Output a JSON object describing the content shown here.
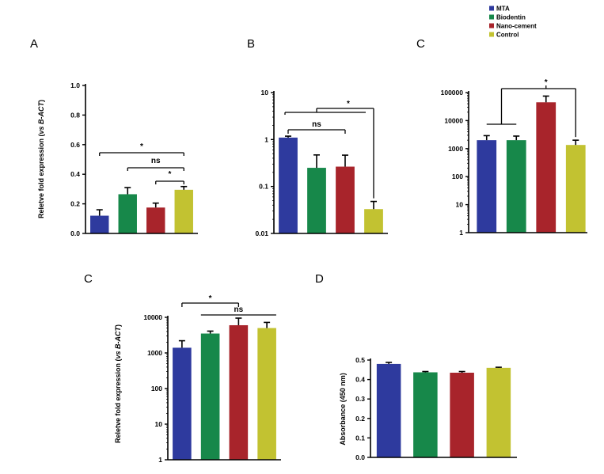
{
  "legend": [
    {
      "label": "MTA",
      "color": "#2e3a9e"
    },
    {
      "label": "Biodentin",
      "color": "#17884a"
    },
    {
      "label": "Nano-cement",
      "color": "#a8242b"
    },
    {
      "label": "Control",
      "color": "#c2c231"
    }
  ],
  "chart_data": [
    {
      "panel_label": "A",
      "type": "bar",
      "scale": "linear",
      "ylabel_pre": "Reletve fold expression (",
      "ylabel_it": "vs B-ACT",
      "ylabel_post": ")",
      "categories": [
        "MTA",
        "Biodentin",
        "Nano-cement",
        "Control"
      ],
      "values": [
        0.12,
        0.265,
        0.175,
        0.295
      ],
      "errors": [
        0.04,
        0.045,
        0.03,
        0.022
      ],
      "ylim": [
        0,
        1.0
      ],
      "ticks": [
        0,
        0.2,
        0.4,
        0.6,
        0.8,
        1.0
      ],
      "tick_labels": [
        "0.0",
        "0.2",
        "0.4",
        "0.6",
        "0.8",
        "1.0"
      ],
      "annotations": [
        {
          "text": "*",
          "from": 0,
          "to": 3
        },
        {
          "text": "ns",
          "from": 1,
          "to": 3
        },
        {
          "text": "*",
          "from": 2,
          "to": 3
        }
      ]
    },
    {
      "panel_label": "B",
      "type": "bar",
      "scale": "log",
      "categories": [
        "MTA",
        "Biodentin",
        "Nano-cement",
        "Control"
      ],
      "values": [
        1.1,
        0.25,
        0.265,
        0.033
      ],
      "errors": [
        0.08,
        0.22,
        0.2,
        0.015
      ],
      "ylim": [
        0.01,
        10
      ],
      "ticks": [
        0.01,
        0.1,
        1,
        10
      ],
      "tick_labels": [
        "0.01",
        "0.1",
        "1",
        "10"
      ],
      "annotations": [
        {
          "text": "*",
          "from": 0,
          "to": 3
        },
        {
          "text": "ns",
          "from": 0,
          "to": 2
        }
      ]
    },
    {
      "panel_label": "C",
      "type": "bar",
      "scale": "log",
      "categories": [
        "MTA",
        "Biodentin",
        "Nano-cement",
        "Control"
      ],
      "values": [
        2000,
        2000,
        45000,
        1350
      ],
      "errors": [
        900,
        800,
        30000,
        650
      ],
      "ylim": [
        1,
        100000
      ],
      "ticks": [
        1,
        10,
        100,
        1000,
        10000,
        100000
      ],
      "tick_labels": [
        "1",
        "10",
        "100",
        "1000",
        "10000",
        "100000"
      ],
      "annotations": [
        {
          "text": "*",
          "from": "0-1",
          "to": 2
        }
      ]
    },
    {
      "panel_label": "C",
      "type": "bar",
      "scale": "log",
      "ylabel_pre": "Reletve fold expression (",
      "ylabel_it": "vs B-ACT",
      "ylabel_post": ")",
      "categories": [
        "MTA",
        "Biodentin",
        "Nano-cement",
        "Control"
      ],
      "values": [
        1400,
        3500,
        6000,
        5000
      ],
      "errors": [
        800,
        600,
        3500,
        2200
      ],
      "ylim": [
        1,
        10000
      ],
      "ticks": [
        1,
        10,
        100,
        1000,
        10000
      ],
      "tick_labels": [
        "1",
        "10",
        "100",
        "1000",
        "10000"
      ],
      "annotations": [
        {
          "text": "*",
          "from": 0,
          "to": 2
        },
        {
          "text": "ns",
          "from": 1,
          "to": 3
        }
      ]
    },
    {
      "panel_label": "D",
      "type": "bar",
      "scale": "linear",
      "ylabel_pre": "Absorbance (450 nm)",
      "ylabel_it": "",
      "ylabel_post": "",
      "categories": [
        "MTA",
        "Biodentin",
        "Nano-cement",
        "Control"
      ],
      "values": [
        0.48,
        0.437,
        0.435,
        0.46
      ],
      "errors": [
        0.008,
        0.004,
        0.006,
        0.003
      ],
      "ylim": [
        0,
        0.5
      ],
      "ticks": [
        0,
        0.1,
        0.2,
        0.3,
        0.4,
        0.5
      ],
      "tick_labels": [
        "0.0",
        "0.1",
        "0.2",
        "0.3",
        "0.4",
        "0.5"
      ],
      "annotations": []
    }
  ]
}
